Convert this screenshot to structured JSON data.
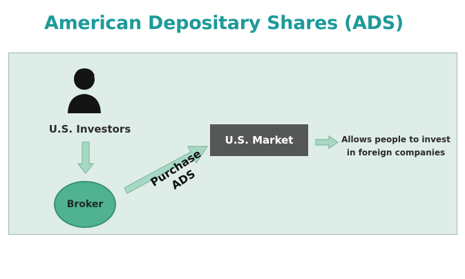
{
  "title": "American Depositary Shares (ADS)",
  "nodes": {
    "investors": {
      "label": "U.S. Investors",
      "icon": "person-icon"
    },
    "broker": {
      "label": "Broker"
    },
    "market": {
      "label": "U.S. Market"
    },
    "outcome": {
      "line1": "Allows people to invest",
      "line2": "in foreign companies"
    }
  },
  "edges": {
    "purchase": {
      "line1": "Purchase",
      "line2": "ADS"
    }
  },
  "colors": {
    "title": "#1d9a9a",
    "panel_bg": "#deede8",
    "broker_fill": "#4fb391",
    "market_fill": "#555756",
    "arrow_fill": "#a9d9c4",
    "arrow_stroke": "#7fb9a3"
  }
}
